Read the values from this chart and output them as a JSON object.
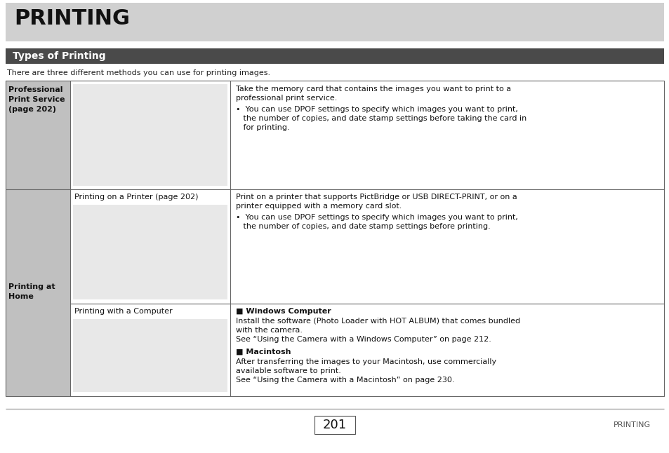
{
  "bg_color": "#ffffff",
  "header_bg": "#d0d0d0",
  "section_header_bg": "#4a4a4a",
  "section_header_color": "#ffffff",
  "left_col_bg": "#c0c0c0",
  "table_border_color": "#666666",
  "title": "PRINTING",
  "section_title": "Types of Printing",
  "intro_text": "There are three different methods you can use for printing images.",
  "footer_page": "201",
  "footer_label": "PRINTING",
  "row1_left_line1": "Professional",
  "row1_left_line2": "Print Service",
  "row1_left_line3": "(page 202)",
  "row1_right_line1": "Take the memory card that contains the images you want to print to a",
  "row1_right_line2": "professional print service.",
  "row1_right_bullet1": "•  You can use DPOF settings to specify which images you want to print,",
  "row1_right_indent1": "   the number of copies, and date stamp settings before taking the card in",
  "row1_right_indent2": "   for printing.",
  "row2_left_line1": "Printing at",
  "row2_left_line2": "Home",
  "row2a_mid": "Printing on a Printer (page 202)",
  "row2a_right_line1": "Print on a printer that supports PictBridge or USB DIRECT-PRINT, or on a",
  "row2a_right_line2": "printer equipped with a memory card slot.",
  "row2a_right_bullet1": "•  You can use DPOF settings to specify which images you want to print,",
  "row2a_right_indent1": "   the number of copies, and date stamp settings before printing.",
  "row2b_mid": "Printing with a Computer",
  "row2b_win_hdr": "■ Windows Computer",
  "row2b_win1": "Install the software (Photo Loader with HOT ALBUM) that comes bundled",
  "row2b_win2": "with the camera.",
  "row2b_win3": "See “Using the Camera with a Windows Computer” on page 212.",
  "row2b_mac_hdr": "■ Macintosh",
  "row2b_mac1": "After transferring the images to your Macintosh, use commercially",
  "row2b_mac2": "available software to print.",
  "row2b_mac3": "See “Using the Camera with a Macintosh” on page 230."
}
